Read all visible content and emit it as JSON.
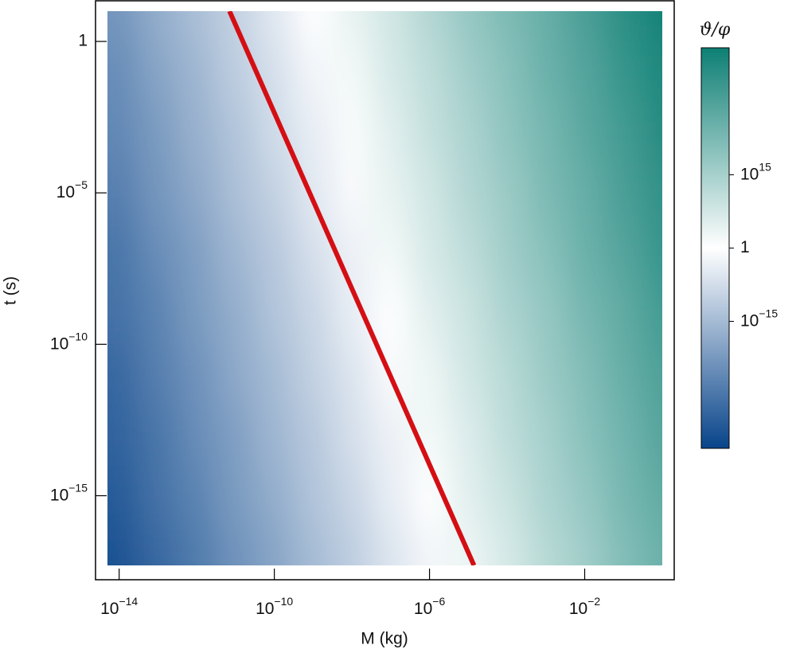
{
  "chart_data": {
    "type": "heatmap",
    "xlabel": "M (kg)",
    "ylabel": "t (s)",
    "colorbar_label": "ϑ/φ",
    "xscale": "log",
    "yscale": "log",
    "colorscale": "log",
    "xlim": [
      5e-15,
      1
    ],
    "ylim": [
      5e-18,
      10
    ],
    "xticks": [
      {
        "value": 1e-14,
        "label": "10",
        "exponent": "−14"
      },
      {
        "value": 1e-10,
        "label": "10",
        "exponent": "−10"
      },
      {
        "value": 1e-06,
        "label": "10",
        "exponent": "−6"
      },
      {
        "value": 0.01,
        "label": "10",
        "exponent": "−2"
      }
    ],
    "yticks": [
      1,
      {
        "value": 1e-05,
        "label": "10",
        "exponent": "−5"
      },
      {
        "value": 1e-10,
        "label": "10",
        "exponent": "−10"
      },
      {
        "value": 1e-15,
        "label": "10",
        "exponent": "−15"
      }
    ],
    "clim": [
      1e-41,
      1e+41
    ],
    "cticks": [
      {
        "value": 1000000000000000.0,
        "label": "10",
        "exponent": "15"
      },
      1,
      {
        "value": 1e-15,
        "label": "10",
        "exponent": "−15"
      }
    ],
    "colors": [
      "#08448a",
      "#ffffff",
      "#0d7f74"
    ],
    "x": [
      1e-14,
      1e-13,
      1e-12,
      1e-11,
      1e-10,
      1e-09,
      1e-08,
      1e-07,
      1e-06,
      1e-05,
      0.0001,
      0.001,
      0.01,
      0.1,
      1
    ],
    "y": [
      10,
      0.1,
      0.001,
      1e-05,
      1e-07,
      1e-09,
      1e-11,
      1e-13,
      1e-15,
      1e-17
    ],
    "z": [
      [
        1e-23,
        1e-18,
        1e-14,
        1e-10,
        1e-05,
        1.0,
        10000.0,
        100000000.0,
        10000000000000.0,
        1e+18,
        1e+22,
        1e+26,
        1e+31,
        1e+36,
        1e+40
      ],
      [
        1e-25,
        1e-20,
        1e-16,
        1e-11,
        1e-07,
        0.01,
        100.0,
        10000000.0,
        100000000000.0,
        1e+16,
        1e+20,
        1e+25,
        1e+29,
        1e+34,
        1e+38
      ],
      [
        1e-26,
        1e-22,
        1e-17,
        1e-13,
        1e-08,
        0.0001,
        10.0,
        100000.0,
        10000000000.0,
        100000000000000.0,
        1e+19,
        1e+23,
        1e+28,
        1e+32,
        1e+37
      ],
      [
        1e-28,
        1e-23,
        1e-19,
        1e-14,
        1e-10,
        1e-05,
        0.1,
        10000.0,
        100000000.0,
        10000000000000.0,
        1e+17,
        1e+22,
        1e+26,
        1e+31,
        1e+35
      ],
      [
        1e-30,
        1e-25,
        1e-21,
        1e-16,
        1e-12,
        1e-07,
        0.001,
        100.0,
        10000000.0,
        100000000000.0,
        1e+16,
        1e+20,
        1e+25,
        1e+29,
        1e+34
      ],
      [
        1e-31,
        1e-27,
        1e-22,
        1e-18,
        1e-13,
        1e-09,
        0.0001,
        1.0,
        100000.0,
        1000000000.0,
        100000000000000.0,
        1e+18,
        1e+23,
        1e+27,
        1e+32
      ],
      [
        1e-33,
        1e-28,
        1e-24,
        1e-19,
        1e-15,
        1e-10,
        1e-06,
        0.1,
        1000.0,
        100000000.0,
        1000000000000.0,
        1e+17,
        1e+21,
        1e+26,
        1e+30
      ],
      [
        1e-34,
        1e-30,
        1e-25,
        1e-21,
        1e-16,
        1e-12,
        1e-07,
        0.001,
        100.0,
        1000000.0,
        100000000000.0,
        1000000000000000.0,
        1e+20,
        1e+24,
        1e+29
      ],
      [
        1e-36,
        1e-31,
        1e-27,
        1e-22,
        1e-18,
        1e-13,
        1e-09,
        0.0001,
        1.0,
        100000.0,
        1000000000.0,
        100000000000000.0,
        1e+18,
        1e+23,
        1e+27
      ],
      [
        1e-38,
        1e-33,
        1e-29,
        1e-24,
        1e-20,
        1e-15,
        1e-11,
        1e-06,
        0.01,
        1000.0,
        10000000.0,
        1000000000000.0,
        1e+16,
        1e+21,
        1e+25
      ]
    ],
    "lines": [
      {
        "color": "#d40f14",
        "x": [
          7e-12,
          1.4e-05
        ],
        "y": [
          10,
          5e-18
        ]
      }
    ]
  }
}
